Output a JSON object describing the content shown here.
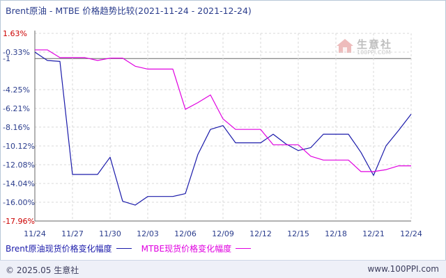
{
  "header": {
    "title": "Brent原油 - MTBE 价格趋势比较(2021-11-24 - 2021-12-24)"
  },
  "legend": {
    "brent_label": "Brent原油现货价格变化幅度",
    "mtbe_label": "MTBE现货价格变化幅度"
  },
  "footer": {
    "copyright": "© 2025.05 生意社",
    "site": "www.100PPI.com"
  },
  "watermark": {
    "name": "生意社",
    "url": "100PPI.COM",
    "logo_icon": "house-logo-icon"
  },
  "colors": {
    "brent": "#1a1aaa",
    "mtbe": "#e000e0",
    "grid": "#d8d8d8",
    "axis": "#666666",
    "ref_line": "#666666",
    "tick_label": "#2a3c8c",
    "top_tick_label": "#cc0000",
    "bottom_tick_label": "#cc0000"
  },
  "chart_data": {
    "type": "line",
    "title": "Brent原油 - MTBE 价格趋势比较(2021-11-24 - 2021-12-24)",
    "xlabel": "",
    "ylabel": "",
    "y_ticks": [
      1.63,
      -0.33,
      -1,
      -4.25,
      -6.21,
      -8.16,
      -10.12,
      -12.08,
      -14.04,
      -16.0,
      -17.96
    ],
    "y_tick_labels": [
      "1.63%",
      "-0.33%",
      "-1",
      "-4.25%",
      "-6.21%",
      "-8.16%",
      "-10.12%",
      "-12.08%",
      "-14.04%",
      "-16.00%",
      "-17.96%"
    ],
    "ylim": [
      -17.96,
      1.63
    ],
    "reference_line": -1,
    "x_tick_labels": [
      "11/24",
      "11/27",
      "11/30",
      "12/03",
      "12/06",
      "12/09",
      "12/12",
      "12/15",
      "12/18",
      "12/21",
      "12/24"
    ],
    "x_tick_days": [
      0,
      3,
      6,
      9,
      12,
      15,
      18,
      21,
      24,
      27,
      30
    ],
    "xlim": [
      0,
      30
    ],
    "grid": true,
    "legend_position": "bottom",
    "series": [
      {
        "name": "Brent原油现货价格变化幅度",
        "x": [
          0,
          1,
          2,
          3,
          4,
          5,
          6,
          7,
          8,
          9,
          10,
          11,
          12,
          13,
          14,
          15,
          16,
          17,
          18,
          19,
          20,
          21,
          22,
          23,
          24,
          25,
          26,
          27,
          28,
          29,
          30
        ],
        "values": [
          -0.33,
          -1.2,
          -1.3,
          -13.1,
          -13.1,
          -13.1,
          -11.3,
          -15.9,
          -16.3,
          -15.4,
          -15.4,
          -15.4,
          -15.1,
          -11.0,
          -8.4,
          -8.0,
          -9.8,
          -9.8,
          -9.8,
          -8.9,
          -9.9,
          -10.6,
          -10.3,
          -8.9,
          -8.9,
          -8.9,
          -10.8,
          -13.2,
          -10.1,
          -8.5,
          -6.8
        ]
      },
      {
        "name": "MTBE现货价格变化幅度",
        "x": [
          0,
          1,
          2,
          3,
          4,
          5,
          6,
          7,
          8,
          9,
          10,
          11,
          12,
          13,
          14,
          15,
          16,
          17,
          18,
          19,
          20,
          21,
          22,
          23,
          24,
          25,
          26,
          27,
          28,
          29,
          30
        ],
        "values": [
          -0.1,
          -0.1,
          -0.9,
          -0.9,
          -0.9,
          -1.2,
          -0.95,
          -0.95,
          -1.8,
          -2.1,
          -2.1,
          -2.1,
          -6.3,
          -5.6,
          -4.8,
          -7.3,
          -8.4,
          -8.4,
          -8.4,
          -10.0,
          -10.0,
          -10.0,
          -11.2,
          -11.6,
          -11.6,
          -11.6,
          -12.8,
          -12.8,
          -12.6,
          -12.2,
          -12.2
        ]
      }
    ]
  }
}
